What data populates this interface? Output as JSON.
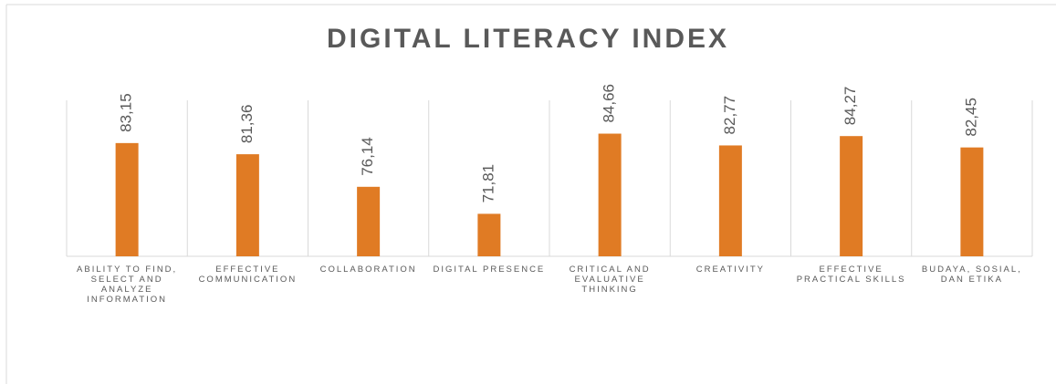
{
  "chart_data": {
    "type": "bar",
    "title": "DIGITAL LITERACY INDEX",
    "categories": [
      "ABILITY TO FIND, SELECT AND ANALYZE INFORMATION",
      "EFFECTIVE COMMUNICATION",
      "COLLABORATION",
      "DIGITAL PRESENCE",
      "CRITICAL AND EVALUATIVE THINKING",
      "CREATIVITY",
      "EFFECTIVE PRACTICAL SKILLS",
      "BUDAYA, SOSIAL, DAN ETIKA"
    ],
    "values": [
      83.15,
      81.36,
      76.14,
      71.81,
      84.66,
      82.77,
      84.27,
      82.45
    ],
    "value_labels": [
      "83,15",
      "81,36",
      "76,14",
      "71,81",
      "84,66",
      "82,77",
      "84,27",
      "82,45"
    ],
    "color": "#e07b24",
    "ylim": [
      65,
      90
    ]
  }
}
